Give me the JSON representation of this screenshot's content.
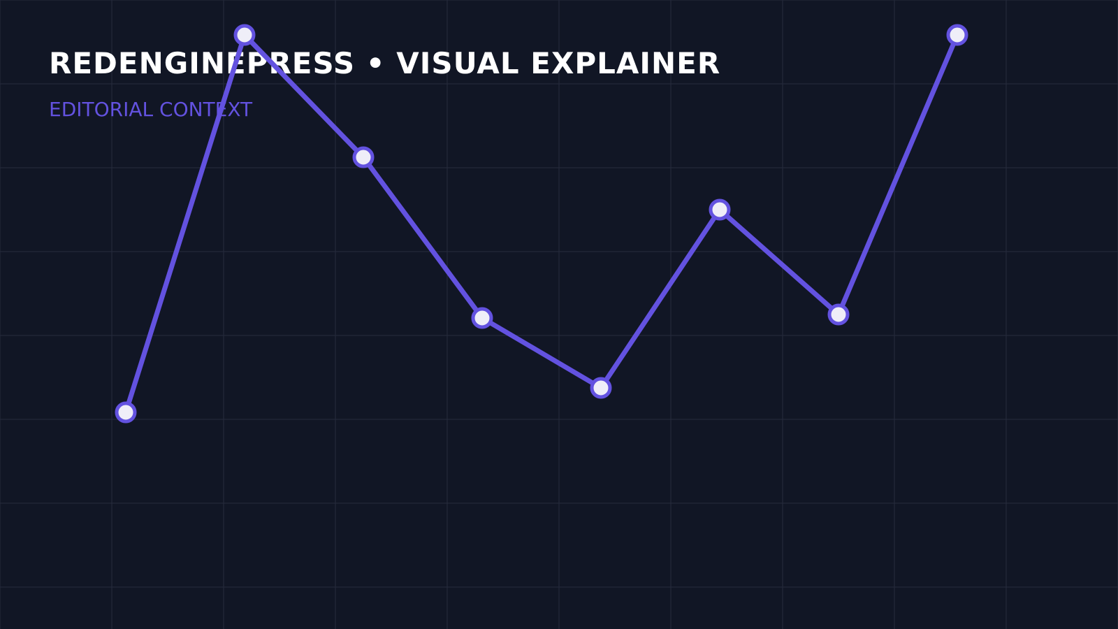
{
  "header": {
    "title": "REDENGINEPRESS • VISUAL EXPLAINER",
    "subtitle": "EDITORIAL CONTEXT"
  },
  "colors": {
    "background": "#111625",
    "grid": "#262c3d",
    "accent": "#6352e0",
    "point_fill": "#efeef8",
    "title": "#ffffff"
  },
  "chart_data": {
    "type": "line",
    "title": "REDENGINEPRESS • VISUAL EXPLAINER",
    "subtitle": "EDITORIAL CONTEXT",
    "xlabel": "",
    "ylabel": "",
    "grid": true,
    "legend": "none",
    "x": [
      1,
      2,
      3,
      4,
      5,
      6,
      7,
      8
    ],
    "ylim": [
      0,
      100
    ],
    "series": [
      {
        "values": [
          41,
          95,
          77.5,
          54.5,
          44.5,
          70,
          55,
          95
        ]
      }
    ]
  }
}
